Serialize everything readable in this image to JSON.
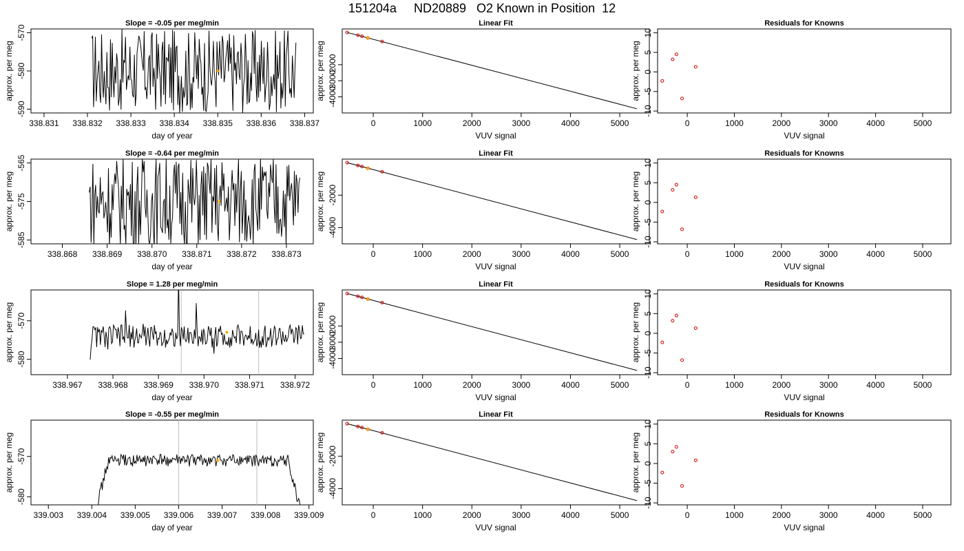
{
  "page": {
    "title": "151204a     ND20889   O2 Known in Position  12"
  },
  "colors": {
    "trace": "#000000",
    "marker_orange": "#FFA500",
    "residual_red": "#CC0000",
    "guide_gray": "#BEBEBE"
  },
  "chart_data": [
    {
      "type": "line",
      "row": 1,
      "col": 1,
      "title": "Slope =  -0.05  per meg/min",
      "xlabel": "day of year",
      "ylabel": "approx. per meg",
      "xlim": [
        338.8307,
        338.8372
      ],
      "ylim": [
        -591,
        -569
      ],
      "xticks": [
        "338.831",
        "338.832",
        "338.833",
        "338.834",
        "338.835",
        "338.836",
        "338.837"
      ],
      "yticks": [
        "-590",
        "-580",
        "-570"
      ],
      "series": [
        {
          "x_start": 338.8321,
          "x_end": 338.8368,
          "center": -580,
          "amplitude": 11,
          "noise": "high"
        }
      ],
      "highlight": {
        "x": 338.835,
        "y": -580
      },
      "guides": []
    },
    {
      "type": "line",
      "row": 1,
      "col": 2,
      "title": "Linear Fit",
      "xlabel": "VUV signal",
      "ylabel": "approx. per meg",
      "xlim": [
        -630,
        5600
      ],
      "ylim": [
        -5000,
        220
      ],
      "xticks": [
        "0",
        "1000",
        "2000",
        "3000",
        "4000",
        "5000"
      ],
      "yticks": [
        "-4000",
        "-3000",
        "-2000"
      ],
      "fit_line": [
        [
          -530,
          0
        ],
        [
          5350,
          -4740
        ]
      ],
      "points": [
        [
          -530,
          0
        ],
        [
          -310,
          -170
        ],
        [
          -230,
          -235
        ],
        [
          -110,
          -340
        ],
        [
          180,
          -560
        ]
      ],
      "highlight": {
        "x": -110,
        "y": -340
      }
    },
    {
      "type": "scatter",
      "row": 1,
      "col": 3,
      "title": "Residuals for Knowns",
      "xlabel": "VUV signal",
      "ylabel": "approx. per meg",
      "xlim": [
        -630,
        5600
      ],
      "ylim": [
        -10.5,
        11
      ],
      "xticks": [
        "0",
        "1000",
        "2000",
        "3000",
        "4000",
        "5000"
      ],
      "yticks": [
        "-10",
        "-5",
        "0",
        "5",
        "10"
      ],
      "points": [
        [
          -530,
          -2.3
        ],
        [
          -310,
          3.2
        ],
        [
          -230,
          4.5
        ],
        [
          -110,
          -6.8
        ],
        [
          180,
          1.3
        ]
      ]
    },
    {
      "type": "line",
      "row": 2,
      "col": 1,
      "title": "Slope =  -0.64  per meg/min",
      "xlabel": "day of year",
      "ylabel": "approx. per meg",
      "xlim": [
        338.8673,
        338.8736
      ],
      "ylim": [
        -586,
        -564
      ],
      "xticks": [
        "338.868",
        "338.869",
        "338.870",
        "338.871",
        "338.872",
        "338.873"
      ],
      "yticks": [
        "-585",
        "-575",
        "-565"
      ],
      "series": [
        {
          "x_start": 338.8686,
          "x_end": 338.8733,
          "center": -575,
          "amplitude": 12,
          "noise": "high"
        }
      ],
      "highlight": {
        "x": 338.8715,
        "y": -575
      },
      "guides": []
    },
    {
      "type": "line",
      "row": 2,
      "col": 2,
      "title": "Linear Fit",
      "xlabel": "VUV signal",
      "ylabel": "approx. per meg",
      "xlim": [
        -630,
        5600
      ],
      "ylim": [
        -5000,
        220
      ],
      "xticks": [
        "0",
        "1000",
        "2000",
        "3000",
        "4000",
        "5000"
      ],
      "yticks": [
        "-4000",
        "-2000"
      ],
      "fit_line": [
        [
          -530,
          0
        ],
        [
          5350,
          -4740
        ]
      ],
      "points": [
        [
          -530,
          0
        ],
        [
          -310,
          -170
        ],
        [
          -230,
          -235
        ],
        [
          -110,
          -340
        ],
        [
          180,
          -560
        ]
      ],
      "highlight": {
        "x": -110,
        "y": -340
      }
    },
    {
      "type": "scatter",
      "row": 2,
      "col": 3,
      "title": "Residuals for Knowns",
      "xlabel": "VUV signal",
      "ylabel": "approx. per meg",
      "xlim": [
        -630,
        5600
      ],
      "ylim": [
        -10.5,
        11
      ],
      "xticks": [
        "0",
        "1000",
        "2000",
        "3000",
        "4000",
        "5000"
      ],
      "yticks": [
        "-10",
        "-5",
        "0",
        "5",
        "10"
      ],
      "points": [
        [
          -530,
          -2.3
        ],
        [
          -310,
          3.2
        ],
        [
          -230,
          4.5
        ],
        [
          -110,
          -6.8
        ],
        [
          180,
          1.3
        ]
      ]
    },
    {
      "type": "line",
      "row": 3,
      "col": 1,
      "title": "Slope =  1.28  per meg/min",
      "xlabel": "day of year",
      "ylabel": "approx. per meg",
      "xlim": [
        338.9662,
        338.9724
      ],
      "ylim": [
        -584,
        -562
      ],
      "xticks": [
        "338.967",
        "338.968",
        "338.969",
        "338.970",
        "338.971",
        "338.972"
      ],
      "yticks": [
        "-580",
        "-570"
      ],
      "series": [
        {
          "x_start": 338.9675,
          "x_end": 338.9722,
          "center": -574,
          "amplitude": 3,
          "noise": "mixed"
        }
      ],
      "highlight": {
        "x": 338.9705,
        "y": -573
      },
      "guides": [
        338.9695,
        338.9712
      ]
    },
    {
      "type": "line",
      "row": 3,
      "col": 2,
      "title": "Linear Fit",
      "xlabel": "VUV signal",
      "ylabel": "approx. per meg",
      "xlim": [
        -630,
        5600
      ],
      "ylim": [
        -5000,
        220
      ],
      "xticks": [
        "0",
        "1000",
        "2000",
        "3000",
        "4000",
        "5000"
      ],
      "yticks": [
        "-4000",
        "-3000",
        "-2000"
      ],
      "fit_line": [
        [
          -530,
          0
        ],
        [
          5350,
          -4740
        ]
      ],
      "points": [
        [
          -530,
          0
        ],
        [
          -310,
          -170
        ],
        [
          -230,
          -235
        ],
        [
          -110,
          -340
        ],
        [
          180,
          -560
        ]
      ],
      "highlight": {
        "x": -110,
        "y": -340
      }
    },
    {
      "type": "scatter",
      "row": 3,
      "col": 3,
      "title": "Residuals for Knowns",
      "xlabel": "VUV signal",
      "ylabel": "approx. per meg",
      "xlim": [
        -630,
        5600
      ],
      "ylim": [
        -10.5,
        11
      ],
      "xticks": [
        "0",
        "1000",
        "2000",
        "3000",
        "4000",
        "5000"
      ],
      "yticks": [
        "-10",
        "-5",
        "0",
        "5",
        "10"
      ],
      "points": [
        [
          -530,
          -2.3
        ],
        [
          -310,
          3.2
        ],
        [
          -230,
          4.5
        ],
        [
          -110,
          -6.8
        ],
        [
          180,
          1.3
        ]
      ]
    },
    {
      "type": "line",
      "row": 4,
      "col": 1,
      "title": "Slope =  -0.55  per meg/min",
      "xlabel": "day of year",
      "ylabel": "approx. per meg",
      "xlim": [
        339.0026,
        339.0091
      ],
      "ylim": [
        -582,
        -561
      ],
      "xticks": [
        "339.003",
        "339.004",
        "339.005",
        "339.006",
        "339.007",
        "339.008",
        "339.009"
      ],
      "yticks": [
        "-580",
        "-570"
      ],
      "series": [
        {
          "x_start": 339.0041,
          "x_end": 339.0088,
          "center": -571,
          "amplitude": 1.5,
          "noise": "low"
        }
      ],
      "highlight": {
        "x": 339.0069,
        "y": -571
      },
      "guides": [
        339.006,
        339.0078
      ]
    },
    {
      "type": "line",
      "row": 4,
      "col": 2,
      "title": "Linear Fit",
      "xlabel": "VUV signal",
      "ylabel": "approx. per meg",
      "xlim": [
        -630,
        5600
      ],
      "ylim": [
        -5000,
        220
      ],
      "xticks": [
        "0",
        "1000",
        "2000",
        "3000",
        "4000",
        "5000"
      ],
      "yticks": [
        "-4000",
        "-2000"
      ],
      "fit_line": [
        [
          -530,
          0
        ],
        [
          5350,
          -4740
        ]
      ],
      "points": [
        [
          -530,
          0
        ],
        [
          -310,
          -170
        ],
        [
          -230,
          -235
        ],
        [
          -110,
          -340
        ],
        [
          180,
          -560
        ]
      ],
      "highlight": {
        "x": -110,
        "y": -340
      }
    },
    {
      "type": "scatter",
      "row": 4,
      "col": 3,
      "title": "Residuals for Knowns",
      "xlabel": "VUV signal",
      "ylabel": "approx. per meg",
      "xlim": [
        -630,
        5600
      ],
      "ylim": [
        -10.5,
        11
      ],
      "xticks": [
        "0",
        "1000",
        "2000",
        "3000",
        "4000",
        "5000"
      ],
      "yticks": [
        "-10",
        "-5",
        "0",
        "5",
        "10"
      ],
      "points": [
        [
          -530,
          -2.3
        ],
        [
          -310,
          3.0
        ],
        [
          -230,
          4.2
        ],
        [
          -110,
          -5.7
        ],
        [
          180,
          0.8
        ]
      ]
    }
  ]
}
